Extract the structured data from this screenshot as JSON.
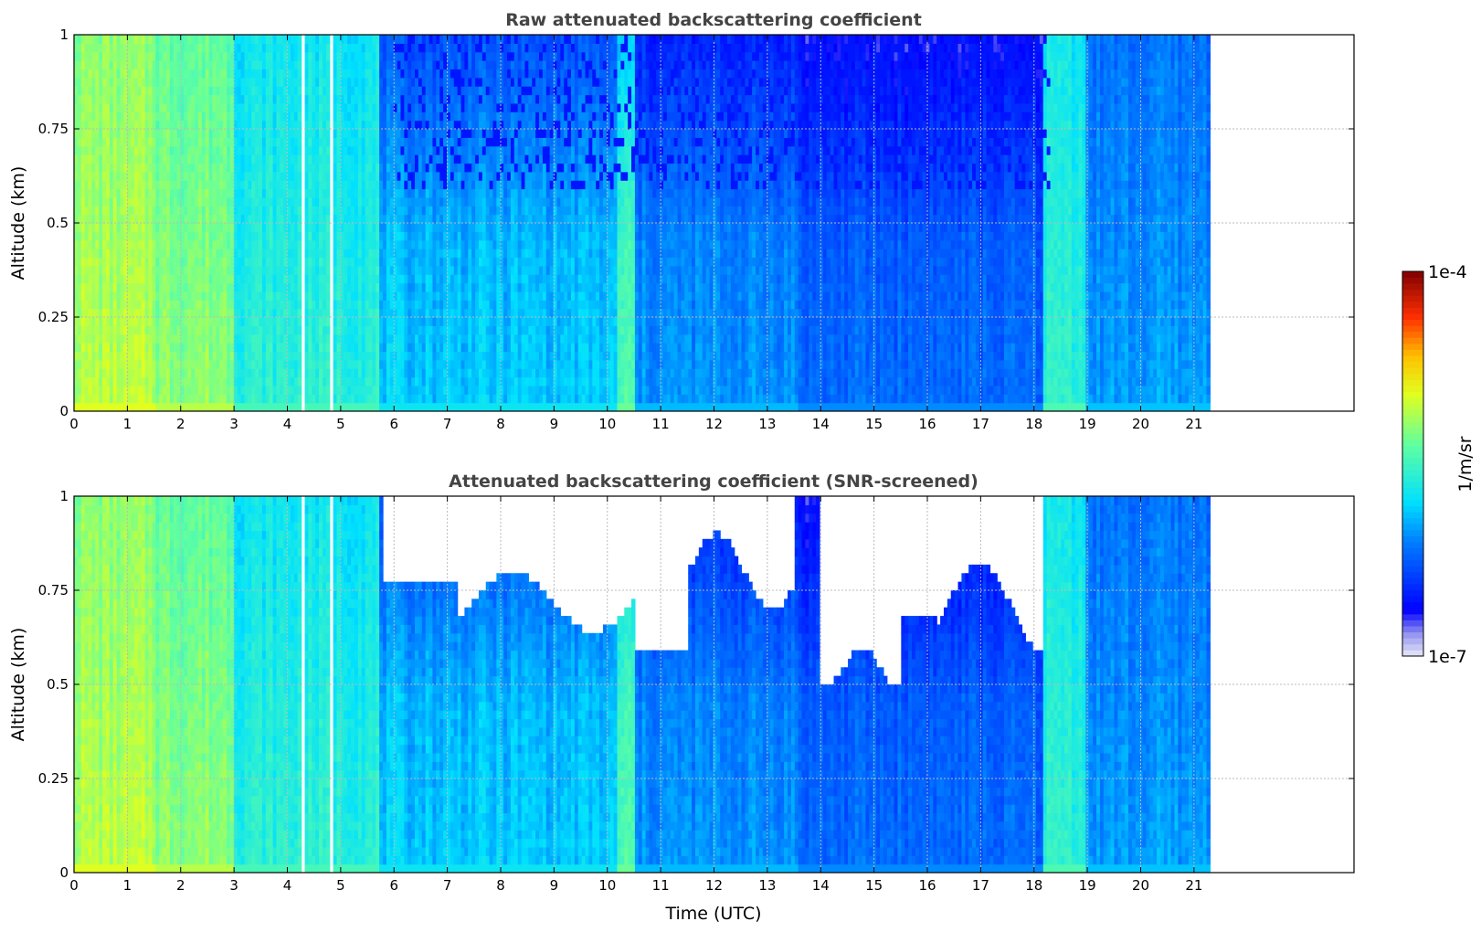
{
  "chart_data": [
    {
      "type": "heatmap",
      "title": "Raw attenuated backscattering coefficient",
      "xlabel": "",
      "ylabel": "Altitude (km)",
      "xlim": [
        0,
        24
      ],
      "ylim": [
        0,
        1
      ],
      "x_ticks": [
        "0",
        "1",
        "2",
        "3",
        "4",
        "5",
        "6",
        "7",
        "8",
        "9",
        "10",
        "11",
        "12",
        "13",
        "14",
        "15",
        "16",
        "17",
        "18",
        "19",
        "20",
        "21"
      ],
      "y_ticks": [
        "0",
        "0.25",
        "0.5",
        "0.75",
        "1"
      ],
      "data_extent_x": [
        0,
        21.3
      ],
      "grid": true,
      "colorscale": "jet",
      "log_scale": true,
      "vmin": 1e-07,
      "vmax": 0.0001,
      "data_gaps": [
        [
          4.25,
          4.35
        ],
        [
          4.78,
          4.85
        ]
      ],
      "screened": false
    },
    {
      "type": "heatmap",
      "title": "Attenuated backscattering coefficient (SNR-screened)",
      "xlabel": "Time (UTC)",
      "ylabel": "Altitude (km)",
      "xlim": [
        0,
        24
      ],
      "ylim": [
        0,
        1
      ],
      "x_ticks": [
        "0",
        "1",
        "2",
        "3",
        "4",
        "5",
        "6",
        "7",
        "8",
        "9",
        "10",
        "11",
        "12",
        "13",
        "14",
        "15",
        "16",
        "17",
        "18",
        "19",
        "20",
        "21"
      ],
      "y_ticks": [
        "0",
        "0.25",
        "0.5",
        "0.75",
        "1"
      ],
      "data_extent_x": [
        0,
        21.3
      ],
      "grid": true,
      "colorscale": "jet",
      "log_scale": true,
      "vmin": 1e-07,
      "vmax": 0.0001,
      "data_gaps": [
        [
          4.25,
          4.35
        ],
        [
          4.78,
          4.85
        ]
      ],
      "screened": true
    }
  ],
  "colorbar": {
    "max_label": "1e-4",
    "min_label": "1e-7",
    "unit_label": "1/m/sr",
    "colorscale": "jet"
  }
}
